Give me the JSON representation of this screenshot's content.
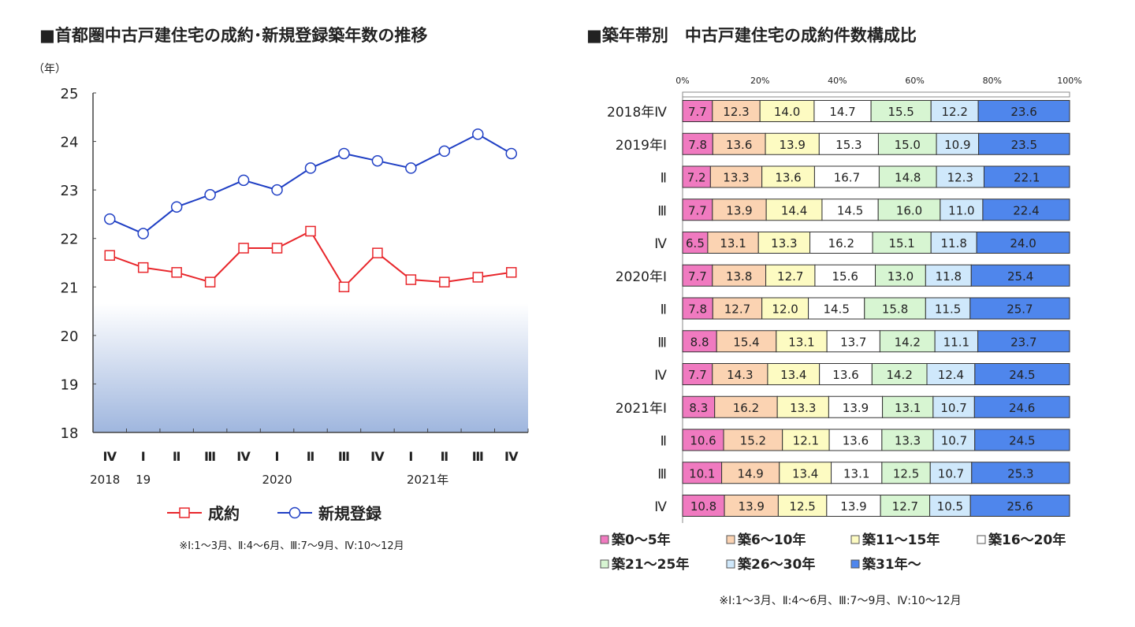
{
  "chart_data": [
    {
      "type": "line",
      "title": "■首都圏中古戸建住宅の成約･新規登録築年数の推移",
      "ylabel": "（年）",
      "ylim": [
        18,
        25
      ],
      "yticks": [
        18,
        19,
        20,
        21,
        22,
        23,
        24,
        25
      ],
      "categories": [
        "Ⅳ",
        "Ⅰ",
        "Ⅱ",
        "Ⅲ",
        "Ⅳ",
        "Ⅰ",
        "Ⅱ",
        "Ⅲ",
        "Ⅳ",
        "Ⅰ",
        "Ⅱ",
        "Ⅲ",
        "Ⅳ"
      ],
      "year_labels": [
        {
          "index": 0,
          "label": "2018"
        },
        {
          "index": 1,
          "label": "19"
        },
        {
          "index": 5,
          "label": "2020"
        },
        {
          "index": 9.5,
          "label": "2021年"
        }
      ],
      "series": [
        {
          "name": "成約",
          "color": "#e8262b",
          "marker": "square",
          "values": [
            21.65,
            21.4,
            21.3,
            21.1,
            21.8,
            21.8,
            22.15,
            21.0,
            21.7,
            21.15,
            21.1,
            21.2,
            21.3
          ]
        },
        {
          "name": "新規登録",
          "color": "#1f3fc4",
          "marker": "circle",
          "values": [
            22.4,
            22.1,
            22.65,
            22.9,
            23.2,
            23.0,
            23.45,
            23.75,
            23.6,
            23.45,
            23.8,
            24.15,
            23.75
          ]
        }
      ],
      "legend": "bottom",
      "note": "※Ⅰ:1～3月、Ⅱ:4～6月、Ⅲ:7～9月、Ⅳ:10～12月"
    },
    {
      "type": "bar",
      "orientation": "horizontal-stacked-100",
      "title": "■築年帯別　中古戸建住宅の成約件数構成比",
      "xlim": [
        0,
        100
      ],
      "xticks": [
        "0%",
        "20%",
        "40%",
        "60%",
        "80%",
        "100%"
      ],
      "categories": [
        "2018年Ⅳ",
        "2019年Ⅰ",
        "Ⅱ",
        "Ⅲ",
        "Ⅳ",
        "2020年Ⅰ",
        "Ⅱ",
        "Ⅲ",
        "Ⅳ",
        "2021年Ⅰ",
        "Ⅱ",
        "Ⅲ",
        "Ⅳ"
      ],
      "series": [
        {
          "name": "築0～5年",
          "color": "#f07ac0",
          "values": [
            7.7,
            7.8,
            7.2,
            7.7,
            6.5,
            7.7,
            7.8,
            8.8,
            7.7,
            8.3,
            10.6,
            10.1,
            10.8
          ]
        },
        {
          "name": "築6～10年",
          "color": "#fbd3b2",
          "values": [
            12.3,
            13.6,
            13.3,
            13.9,
            13.1,
            13.8,
            12.7,
            15.4,
            14.3,
            16.2,
            15.2,
            14.9,
            13.9
          ]
        },
        {
          "name": "築11～15年",
          "color": "#fdfbc2",
          "values": [
            14.0,
            13.9,
            13.6,
            14.4,
            13.3,
            12.7,
            12.0,
            13.1,
            13.4,
            13.3,
            12.1,
            13.4,
            12.5
          ]
        },
        {
          "name": "築16～20年",
          "color": "#ffffff",
          "values": [
            14.7,
            15.3,
            16.7,
            14.5,
            16.2,
            15.6,
            14.5,
            13.7,
            13.6,
            13.9,
            13.6,
            13.1,
            13.9
          ]
        },
        {
          "name": "築21～25年",
          "color": "#d7f5d2",
          "values": [
            15.5,
            15.0,
            14.8,
            16.0,
            15.1,
            13.0,
            15.8,
            14.2,
            14.2,
            13.1,
            13.3,
            12.5,
            12.7
          ]
        },
        {
          "name": "築26～30年",
          "color": "#cfe8fb",
          "values": [
            12.2,
            10.9,
            12.3,
            11.0,
            11.8,
            11.8,
            11.5,
            11.1,
            12.4,
            10.7,
            10.7,
            10.7,
            10.5
          ]
        },
        {
          "name": "築31年～",
          "color": "#4f86ec",
          "values": [
            23.6,
            23.5,
            22.1,
            22.4,
            24.0,
            25.4,
            25.7,
            23.7,
            24.5,
            24.6,
            24.5,
            25.3,
            25.6
          ]
        }
      ],
      "legend": "bottom",
      "note": "※Ⅰ:1～3月、Ⅱ:4～6月、Ⅲ:7～9月、Ⅳ:10～12月"
    }
  ]
}
